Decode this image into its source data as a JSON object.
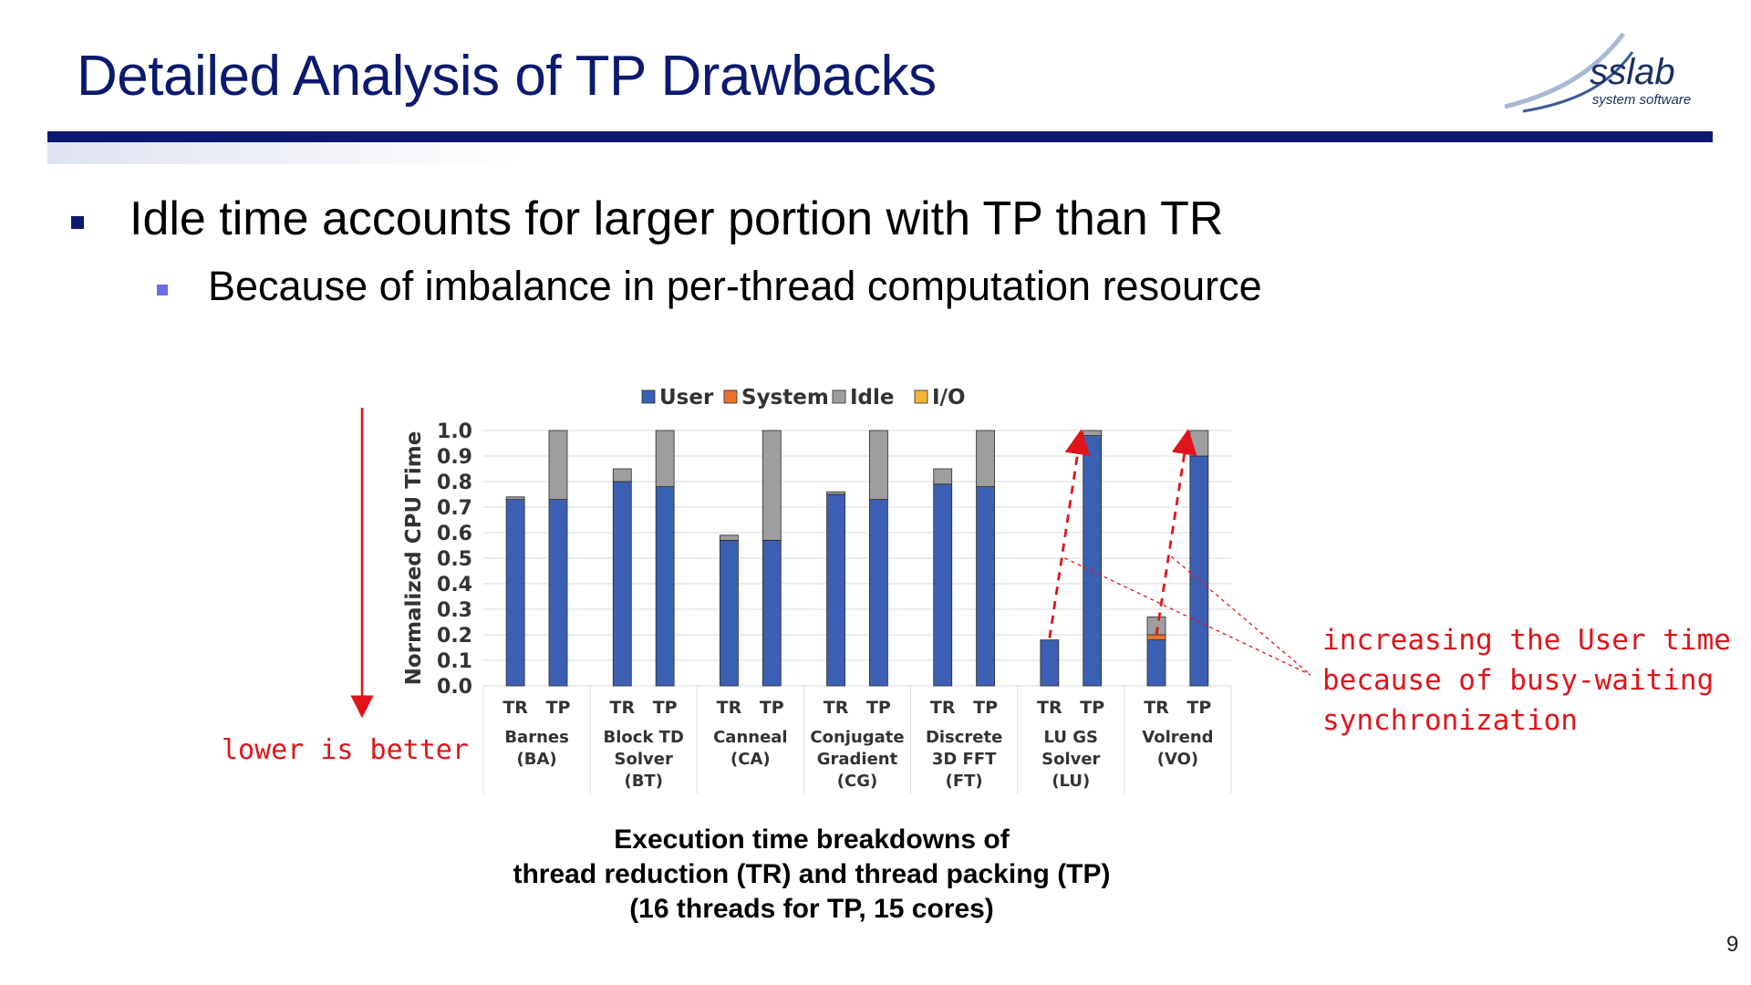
{
  "slide": {
    "title": "Detailed Analysis of TP Drawbacks",
    "bullet1": "Idle time accounts for larger portion with TP than TR",
    "bullet2": "Because of imbalance in per-thread computation resource",
    "page_number": "9"
  },
  "logo": {
    "name": "sslab",
    "tagline": "system software"
  },
  "annotations": {
    "lower_is_better": "lower is better",
    "busy_wait_line1": "increasing the User time",
    "busy_wait_line2": "because of busy-waiting",
    "busy_wait_line3": "synchronization"
  },
  "caption": {
    "line1": "Execution time breakdowns of",
    "line2": "thread reduction (TR) and thread packing (TP)",
    "line3": "(16 threads for TP, 15 cores)"
  },
  "colors": {
    "title": "#0b1a6e",
    "User": "#3b5fb3",
    "System": "#e8732c",
    "Idle": "#9e9e9e",
    "I/O": "#f2b53a",
    "annotation": "#e0141b"
  },
  "chart_data": {
    "type": "bar",
    "stacked": true,
    "ylabel": "Normalized CPU Time",
    "ylim": [
      0,
      1.0
    ],
    "yticks": [
      "0.0",
      "0.1",
      "0.2",
      "0.3",
      "0.4",
      "0.5",
      "0.6",
      "0.7",
      "0.8",
      "0.9",
      "1.0"
    ],
    "legend_position": "top",
    "grid": true,
    "groups": [
      {
        "label_lines": [
          "Barnes",
          "(BA)"
        ]
      },
      {
        "label_lines": [
          "Block TD",
          "Solver",
          "(BT)"
        ]
      },
      {
        "label_lines": [
          "Canneal",
          "(CA)"
        ]
      },
      {
        "label_lines": [
          "Conjugate",
          "Gradient",
          "(CG)"
        ]
      },
      {
        "label_lines": [
          "Discrete",
          "3D FFT",
          "(FT)"
        ]
      },
      {
        "label_lines": [
          "LU GS",
          "Solver",
          "(LU)"
        ]
      },
      {
        "label_lines": [
          "Volrend",
          "(VO)"
        ]
      }
    ],
    "bar_labels": [
      "TR",
      "TP"
    ],
    "series": [
      {
        "name": "User",
        "values": [
          0.73,
          0.73,
          0.8,
          0.78,
          0.57,
          0.57,
          0.75,
          0.73,
          0.79,
          0.78,
          0.18,
          0.98,
          0.18,
          0.9
        ]
      },
      {
        "name": "System",
        "values": [
          0.0,
          0.0,
          0.0,
          0.0,
          0.0,
          0.0,
          0.0,
          0.0,
          0.0,
          0.0,
          0.0,
          0.0,
          0.02,
          0.0
        ]
      },
      {
        "name": "Idle",
        "values": [
          0.01,
          0.27,
          0.05,
          0.22,
          0.02,
          0.43,
          0.01,
          0.27,
          0.06,
          0.22,
          0.0,
          0.02,
          0.07,
          0.1
        ]
      },
      {
        "name": "I/O",
        "values": [
          0,
          0,
          0,
          0,
          0,
          0,
          0,
          0,
          0,
          0,
          0,
          0,
          0,
          0
        ]
      }
    ]
  }
}
